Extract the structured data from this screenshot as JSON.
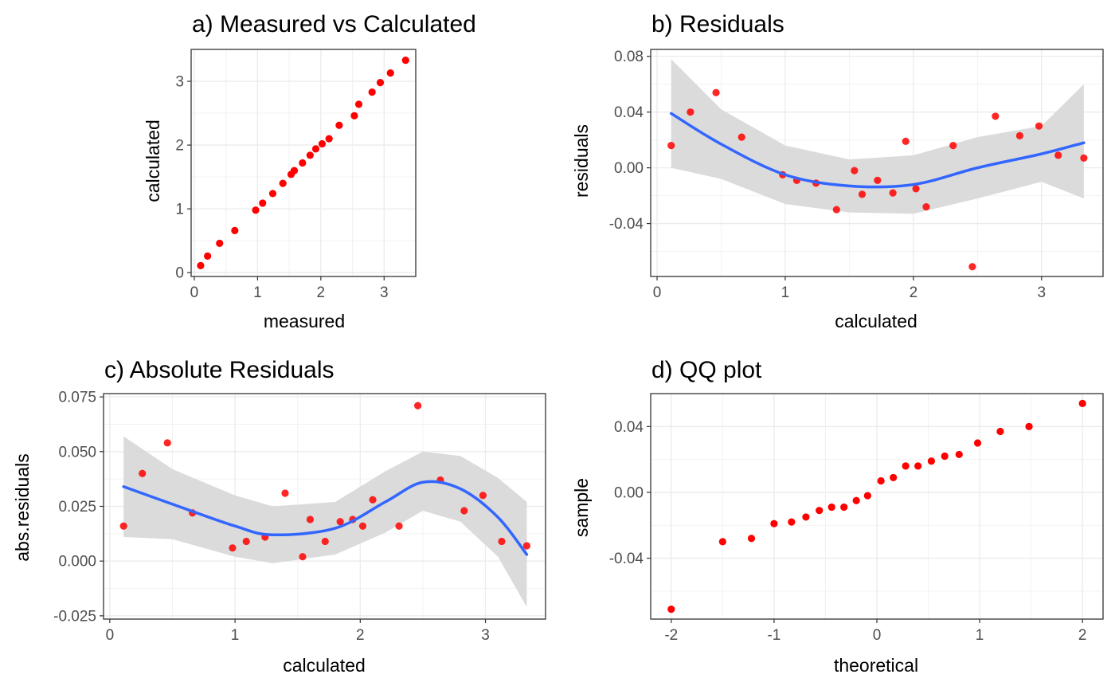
{
  "chart_data": [
    {
      "type": "scatter",
      "title": "a) Measured vs Calculated",
      "xlabel": "measured",
      "ylabel": "calculated",
      "xlim": [
        -0.05,
        3.5
      ],
      "ylim": [
        -0.06,
        3.5
      ],
      "xticks": [
        0,
        1,
        2,
        3
      ],
      "yticks": [
        0,
        1,
        2,
        3
      ],
      "grid": true,
      "point_color": "#ff0000",
      "series": [
        {
          "values": [
            [
              0.1,
              0.11
            ],
            [
              0.21,
              0.26
            ],
            [
              0.4,
              0.46
            ],
            [
              0.64,
              0.66
            ],
            [
              0.97,
              0.98
            ],
            [
              1.08,
              1.09
            ],
            [
              1.24,
              1.24
            ],
            [
              1.4,
              1.4
            ],
            [
              1.53,
              1.54
            ],
            [
              1.58,
              1.6
            ],
            [
              1.71,
              1.72
            ],
            [
              1.83,
              1.84
            ],
            [
              1.92,
              1.94
            ],
            [
              2.02,
              2.02
            ],
            [
              2.13,
              2.1
            ],
            [
              2.29,
              2.31
            ],
            [
              2.53,
              2.46
            ],
            [
              2.6,
              2.64
            ],
            [
              2.81,
              2.83
            ],
            [
              2.94,
              2.98
            ],
            [
              3.1,
              3.13
            ],
            [
              3.34,
              3.33
            ]
          ]
        }
      ]
    },
    {
      "type": "scatter",
      "title": "b) Residuals",
      "xlabel": "calculated",
      "ylabel": "residuals",
      "xlim": [
        -0.05,
        3.48
      ],
      "ylim": [
        -0.078,
        0.085
      ],
      "xticks": [
        0,
        1,
        2,
        3
      ],
      "yticks": [
        -0.04,
        0.0,
        0.04,
        0.08
      ],
      "ytick_labels": [
        "-0.04",
        "0.00",
        "0.04",
        "0.08"
      ],
      "grid": true,
      "point_color": "#ff0000",
      "smooth_color": "#3366ff",
      "band_color": "#d9d9d9",
      "series": [
        {
          "values": [
            [
              0.11,
              0.016
            ],
            [
              0.26,
              0.04
            ],
            [
              0.46,
              0.054
            ],
            [
              0.66,
              0.022
            ],
            [
              0.98,
              -0.005
            ],
            [
              1.09,
              -0.009
            ],
            [
              1.24,
              -0.011
            ],
            [
              1.4,
              -0.03
            ],
            [
              1.54,
              -0.002
            ],
            [
              1.6,
              -0.019
            ],
            [
              1.72,
              -0.009
            ],
            [
              1.84,
              -0.018
            ],
            [
              1.94,
              0.019
            ],
            [
              2.02,
              -0.015
            ],
            [
              2.1,
              -0.028
            ],
            [
              2.31,
              0.016
            ],
            [
              2.46,
              -0.071
            ],
            [
              2.64,
              0.037
            ],
            [
              2.83,
              0.023
            ],
            [
              2.98,
              0.03
            ],
            [
              3.13,
              0.009
            ],
            [
              3.33,
              0.007
            ]
          ]
        }
      ],
      "smooth": {
        "x": [
          0.11,
          0.5,
          1.0,
          1.5,
          2.0,
          2.5,
          3.0,
          3.33
        ],
        "fit": [
          0.039,
          0.017,
          -0.005,
          -0.013,
          -0.012,
          0.0,
          0.01,
          0.018
        ],
        "lower": [
          0.0,
          -0.008,
          -0.026,
          -0.032,
          -0.033,
          -0.022,
          -0.01,
          -0.022
        ],
        "upper": [
          0.078,
          0.042,
          0.016,
          0.006,
          0.009,
          0.022,
          0.03,
          0.06
        ]
      }
    },
    {
      "type": "scatter",
      "title": "c) Absolute Residuals",
      "xlabel": "calculated",
      "ylabel": "abs.residuals",
      "xlim": [
        -0.05,
        3.48
      ],
      "ylim": [
        -0.0265,
        0.0765
      ],
      "xticks": [
        0,
        1,
        2,
        3
      ],
      "yticks": [
        -0.025,
        0.0,
        0.025,
        0.05,
        0.075
      ],
      "ytick_labels": [
        "-0.025",
        "0.000",
        "0.025",
        "0.050",
        "0.075"
      ],
      "grid": true,
      "point_color": "#ff0000",
      "smooth_color": "#3366ff",
      "band_color": "#d9d9d9",
      "series": [
        {
          "values": [
            [
              0.11,
              0.016
            ],
            [
              0.26,
              0.04
            ],
            [
              0.46,
              0.054
            ],
            [
              0.66,
              0.022
            ],
            [
              0.98,
              0.006
            ],
            [
              1.09,
              0.009
            ],
            [
              1.24,
              0.011
            ],
            [
              1.4,
              0.031
            ],
            [
              1.54,
              0.002
            ],
            [
              1.6,
              0.019
            ],
            [
              1.72,
              0.009
            ],
            [
              1.84,
              0.018
            ],
            [
              1.94,
              0.019
            ],
            [
              2.02,
              0.016
            ],
            [
              2.1,
              0.028
            ],
            [
              2.31,
              0.016
            ],
            [
              2.46,
              0.071
            ],
            [
              2.64,
              0.037
            ],
            [
              2.83,
              0.023
            ],
            [
              2.98,
              0.03
            ],
            [
              3.13,
              0.009
            ],
            [
              3.33,
              0.007
            ]
          ]
        }
      ],
      "smooth": {
        "x": [
          0.11,
          0.5,
          1.0,
          1.3,
          1.8,
          2.2,
          2.5,
          2.8,
          3.1,
          3.33
        ],
        "fit": [
          0.034,
          0.026,
          0.016,
          0.012,
          0.015,
          0.027,
          0.036,
          0.033,
          0.02,
          0.003
        ],
        "lower": [
          0.011,
          0.01,
          0.002,
          -0.001,
          0.003,
          0.013,
          0.023,
          0.018,
          0.002,
          -0.021
        ],
        "upper": [
          0.057,
          0.042,
          0.03,
          0.025,
          0.027,
          0.041,
          0.05,
          0.048,
          0.038,
          0.027
        ]
      }
    },
    {
      "type": "scatter",
      "title": "d) QQ plot",
      "xlabel": "theoretical",
      "ylabel": "sample",
      "xlim": [
        -2.2,
        2.2
      ],
      "ylim": [
        -0.077,
        0.06
      ],
      "xticks": [
        -2,
        -1,
        0,
        1,
        2
      ],
      "yticks": [
        -0.04,
        0.0,
        0.04
      ],
      "ytick_labels": [
        "-0.04",
        "0.00",
        "0.04"
      ],
      "grid": true,
      "point_color": "#ff0000",
      "series": [
        {
          "values": [
            [
              -2.0,
              -0.071
            ],
            [
              -1.5,
              -0.03
            ],
            [
              -1.22,
              -0.028
            ],
            [
              -1.0,
              -0.019
            ],
            [
              -0.83,
              -0.018
            ],
            [
              -0.69,
              -0.015
            ],
            [
              -0.56,
              -0.011
            ],
            [
              -0.44,
              -0.009
            ],
            [
              -0.32,
              -0.009
            ],
            [
              -0.2,
              -0.005
            ],
            [
              -0.09,
              -0.002
            ],
            [
              0.04,
              0.007
            ],
            [
              0.16,
              0.009
            ],
            [
              0.28,
              0.016
            ],
            [
              0.4,
              0.016
            ],
            [
              0.53,
              0.019
            ],
            [
              0.66,
              0.022
            ],
            [
              0.8,
              0.023
            ],
            [
              0.98,
              0.03
            ],
            [
              1.2,
              0.037
            ],
            [
              1.48,
              0.04
            ],
            [
              2.0,
              0.054
            ]
          ]
        }
      ]
    }
  ]
}
